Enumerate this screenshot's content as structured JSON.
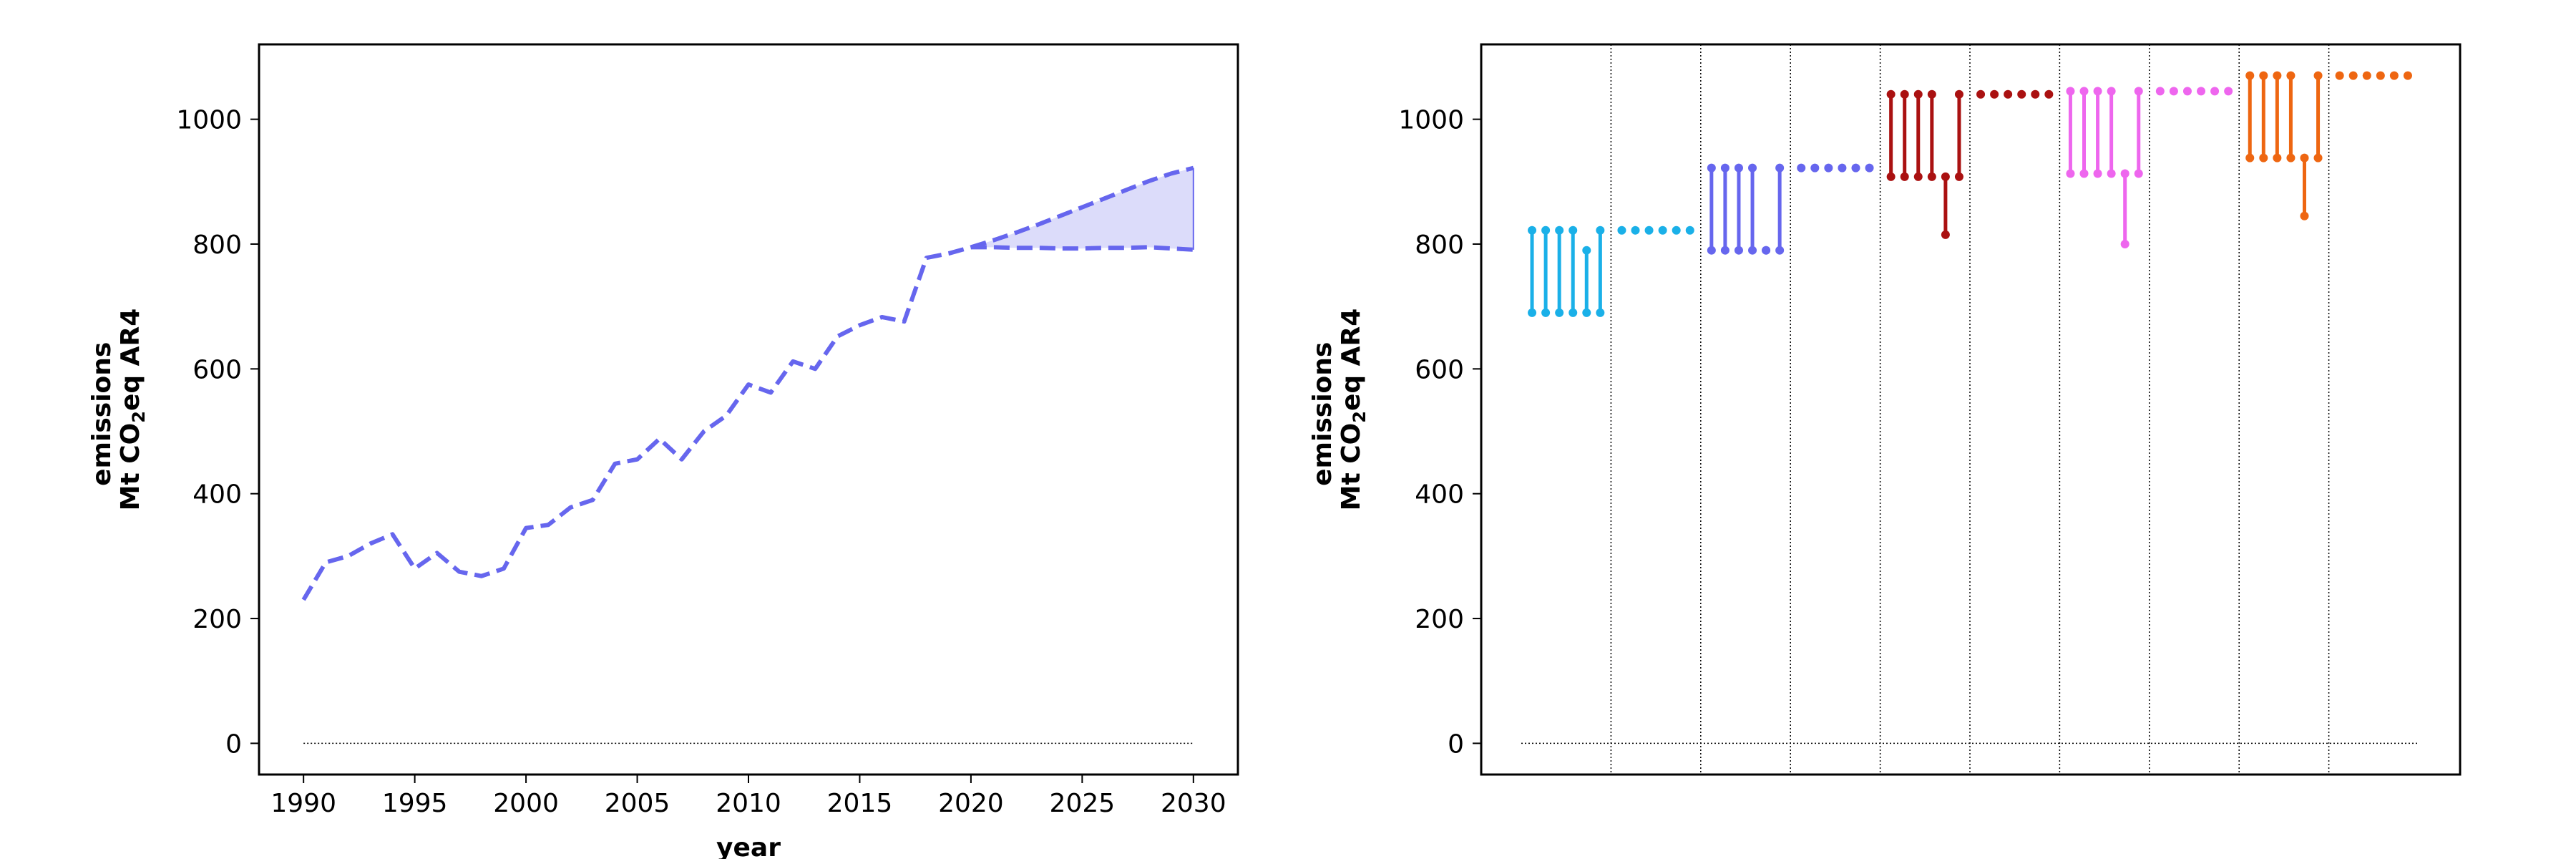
{
  "chart_data": [
    {
      "type": "line",
      "xlabel": "year",
      "ylabel_line1": "emissions",
      "ylabel_line2_a": "Mt CO",
      "ylabel_line2_sub": "2",
      "ylabel_line2_b": "eq AR4",
      "xlim": [
        1988,
        2032
      ],
      "ylim": [
        -50,
        1120
      ],
      "xticks": [
        "1990",
        "1995",
        "2000",
        "2005",
        "2010",
        "2015",
        "2020",
        "2025",
        "2030"
      ],
      "yticks": [
        "0",
        "200",
        "400",
        "600",
        "800",
        "1000"
      ],
      "color": "#6666ee",
      "band_color": "#dcdcfa",
      "historical": {
        "x": [
          1990,
          1991,
          1992,
          1993,
          1994,
          1995,
          1996,
          1997,
          1998,
          1999,
          2000,
          2001,
          2002,
          2003,
          2004,
          2005,
          2006,
          2007,
          2008,
          2009,
          2010,
          2011,
          2012,
          2013,
          2014,
          2015,
          2016,
          2017,
          2018,
          2019,
          2020
        ],
        "y": [
          230,
          290,
          300,
          320,
          335,
          280,
          305,
          275,
          268,
          280,
          345,
          350,
          378,
          390,
          448,
          455,
          488,
          455,
          500,
          525,
          575,
          562,
          612,
          600,
          652,
          670,
          683,
          676,
          778,
          785,
          795
        ]
      },
      "projection_upper": {
        "x": [
          2020,
          2021,
          2022,
          2023,
          2024,
          2025,
          2026,
          2027,
          2028,
          2029,
          2030
        ],
        "y": [
          795,
          806,
          818,
          831,
          845,
          859,
          873,
          887,
          901,
          913,
          922
        ]
      },
      "projection_lower": {
        "x": [
          2020,
          2021,
          2022,
          2023,
          2024,
          2025,
          2026,
          2027,
          2028,
          2029,
          2030
        ],
        "y": [
          795,
          795,
          794,
          794,
          793,
          793,
          794,
          794,
          795,
          793,
          791
        ]
      },
      "zero_line": true,
      "grid": false
    },
    {
      "type": "scatter",
      "ylabel_line1": "emissions",
      "ylabel_line2_a": "Mt CO",
      "ylabel_line2_sub": "2",
      "ylabel_line2_b": "eq AR4",
      "ylim": [
        -50,
        1120
      ],
      "yticks": [
        "0",
        "200",
        "400",
        "600",
        "800",
        "1000"
      ],
      "zero_line": true,
      "groups": [
        {
          "color": "#1ab0e8",
          "ranges": [
            [
              690,
              822
            ],
            [
              690,
              822
            ],
            [
              690,
              822
            ],
            [
              690,
              822
            ],
            [
              690,
              790
            ],
            [
              690,
              822
            ]
          ],
          "points": [
            822,
            822,
            822,
            822,
            822,
            822
          ]
        },
        {
          "color": "#6666ee",
          "ranges": [
            [
              790,
              922
            ],
            [
              790,
              922
            ],
            [
              790,
              922
            ],
            [
              790,
              922
            ],
            [
              790,
              790
            ],
            [
              790,
              922
            ]
          ],
          "points": [
            922,
            922,
            922,
            922,
            922,
            922
          ]
        },
        {
          "color": "#aa1111",
          "ranges": [
            [
              908,
              1040
            ],
            [
              908,
              1040
            ],
            [
              908,
              1040
            ],
            [
              908,
              1040
            ],
            [
              815,
              908
            ],
            [
              908,
              1040
            ]
          ],
          "points": [
            1040,
            1040,
            1040,
            1040,
            1040,
            1040
          ]
        },
        {
          "color": "#ee66ee",
          "ranges": [
            [
              913,
              1045
            ],
            [
              913,
              1045
            ],
            [
              913,
              1045
            ],
            [
              913,
              1045
            ],
            [
              800,
              913
            ],
            [
              913,
              1045
            ]
          ],
          "points": [
            1045,
            1045,
            1045,
            1045,
            1045,
            1045
          ]
        },
        {
          "color": "#ee6611",
          "ranges": [
            [
              938,
              1070
            ],
            [
              938,
              1070
            ],
            [
              938,
              1070
            ],
            [
              938,
              1070
            ],
            [
              845,
              938
            ],
            [
              938,
              1070
            ]
          ],
          "points": [
            1070,
            1070,
            1070,
            1070,
            1070,
            1070
          ]
        }
      ]
    }
  ]
}
